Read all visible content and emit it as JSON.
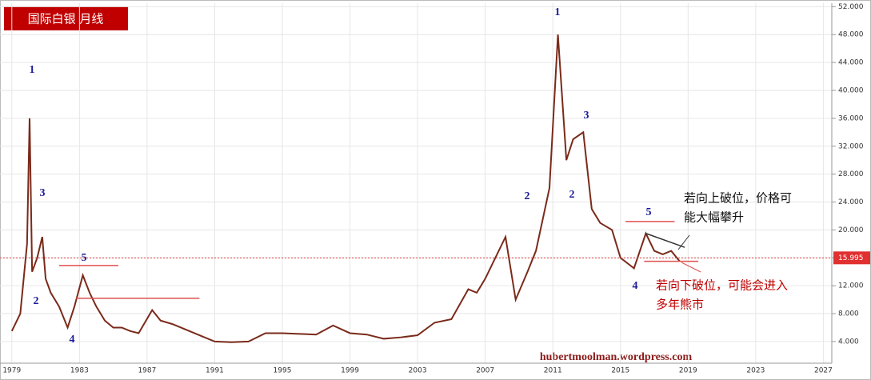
{
  "chart_data": {
    "type": "line",
    "title": "国际白银 月线",
    "series": [
      {
        "name": "Silver",
        "color": "#7a2a1a",
        "x": [
          1979.0,
          1979.5,
          1979.9,
          1980.05,
          1980.2,
          1980.5,
          1980.8,
          1981.0,
          1981.3,
          1981.8,
          1982.3,
          1982.7,
          1983.2,
          1983.6,
          1984.0,
          1984.5,
          1985.0,
          1985.5,
          1986.0,
          1986.5,
          1987.3,
          1987.8,
          1988.5,
          1989.0,
          1990.0,
          1991.0,
          1992.0,
          1993.0,
          1994.0,
          1995.0,
          1996.0,
          1997.0,
          1998.0,
          1999.0,
          2000.0,
          2001.0,
          2002.0,
          2003.0,
          2004.0,
          2005.0,
          2006.0,
          2006.5,
          2007.0,
          2008.2,
          2008.8,
          2009.5,
          2010.0,
          2010.8,
          2011.3,
          2011.8,
          2012.2,
          2012.8,
          2013.3,
          2013.8,
          2014.5,
          2015.0,
          2015.8,
          2016.5,
          2017.0,
          2017.5,
          2018.0,
          2018.5
        ],
        "values": [
          5.5,
          8,
          18,
          36,
          14,
          16,
          19,
          13,
          11,
          9,
          6,
          9,
          13.5,
          11,
          9,
          7,
          6,
          6,
          5.5,
          5.2,
          8.5,
          7,
          6.5,
          6,
          5,
          4,
          3.9,
          4,
          5.2,
          5.2,
          5.1,
          5.0,
          6.3,
          5.2,
          5.0,
          4.4,
          4.6,
          4.9,
          6.7,
          7.2,
          11.5,
          11,
          13,
          19,
          10,
          14,
          17,
          26,
          48,
          30,
          33,
          34,
          23,
          21,
          20,
          16,
          14.5,
          19.5,
          17,
          16.5,
          17,
          15.5
        ]
      }
    ],
    "last_price": 15.995,
    "xlim": [
      1978.3,
      2027.5
    ],
    "xticks": [
      1979,
      1983,
      1987,
      1991,
      1995,
      1999,
      2003,
      2007,
      2011,
      2015,
      2019,
      2023,
      2027
    ],
    "ylim": [
      2.5,
      52.5
    ],
    "yticks": [
      {
        "value": 4,
        "label": "4.000"
      },
      {
        "value": 8,
        "label": "8.000"
      },
      {
        "value": 12,
        "label": "12.000"
      },
      {
        "value": 16,
        "label": "16.000"
      },
      {
        "value": 20,
        "label": "20.000"
      },
      {
        "value": 24,
        "label": "24.000"
      },
      {
        "value": 28,
        "label": "28.000"
      },
      {
        "value": 32,
        "label": "32.000"
      },
      {
        "value": 36,
        "label": "36.000"
      },
      {
        "value": 40,
        "label": "40.000"
      },
      {
        "value": 44,
        "label": "44.000"
      },
      {
        "value": 48,
        "label": "48.000"
      },
      {
        "value": 52,
        "label": "52.000"
      }
    ],
    "grid": true,
    "levels": [
      {
        "color": "#e05050",
        "x": [
          1981.8,
          1985.3
        ],
        "y": [
          14.9,
          14.9
        ]
      },
      {
        "color": "#e05050",
        "x": [
          1982.8,
          1990.1
        ],
        "y": [
          10.2,
          10.2
        ]
      },
      {
        "color": "#e05050",
        "x": [
          2015.3,
          2018.2
        ],
        "y": [
          21.2,
          21.2
        ]
      },
      {
        "color": "#e05050",
        "x": [
          2016.4,
          2019.6
        ],
        "y": [
          15.5,
          15.5
        ]
      },
      {
        "color": "#333333",
        "x": [
          2016.5,
          2018.8
        ],
        "y": [
          19.5,
          17.5
        ]
      }
    ],
    "wave_labels": [
      "1",
      "3",
      "2",
      "5",
      "4",
      "1",
      "3",
      "2",
      "2",
      "5",
      "4"
    ],
    "note_up": [
      "若向上破位，价格可",
      "能大幅攀升"
    ],
    "note_down": [
      "若向下破位，可能会进入",
      "多年熊市"
    ],
    "watermark": "hubertmoolman.wordpress.com"
  }
}
